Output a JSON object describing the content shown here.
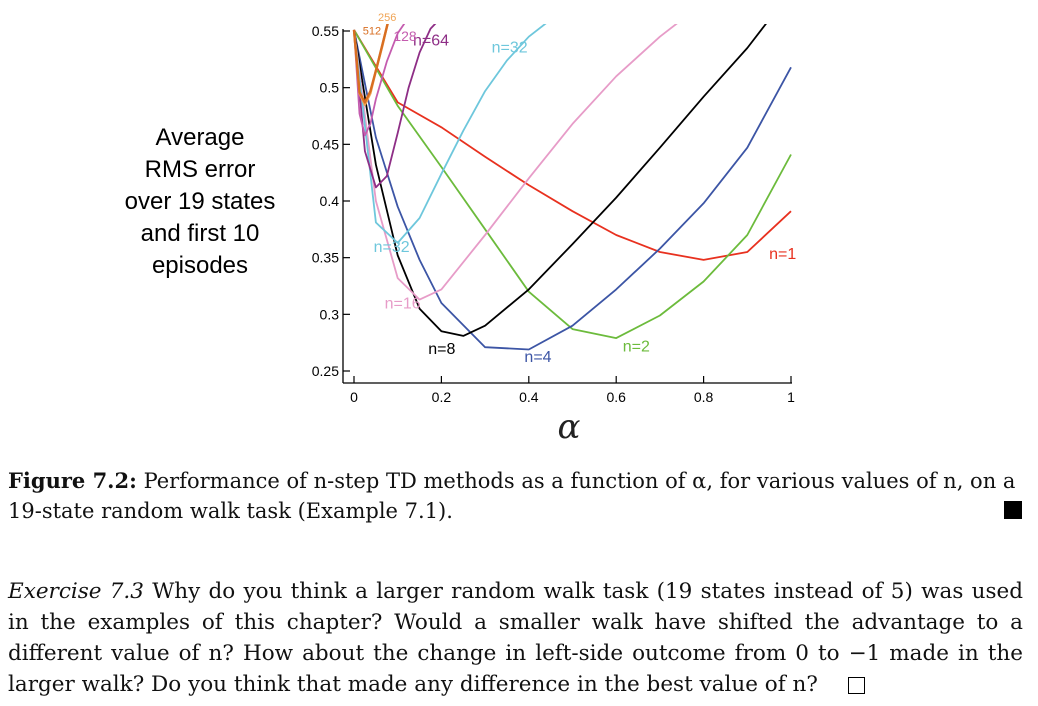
{
  "chart_data": {
    "type": "line",
    "ylabel_lines": [
      "Average",
      "RMS error",
      "over 19 states",
      "and first 10",
      "episodes"
    ],
    "xlabel": "α",
    "xlim": [
      0,
      1
    ],
    "ylim": [
      0.25,
      0.55
    ],
    "x_ticks": [
      {
        "value": 0,
        "label": "0"
      },
      {
        "value": 0.2,
        "label": "0.2"
      },
      {
        "value": 0.4,
        "label": "0.4"
      },
      {
        "value": 0.6,
        "label": "0.6"
      },
      {
        "value": 0.8,
        "label": "0.8"
      },
      {
        "value": 1,
        "label": "1"
      }
    ],
    "y_ticks": [
      {
        "value": 0.25,
        "label": "0.25"
      },
      {
        "value": 0.3,
        "label": "0.3"
      },
      {
        "value": 0.35,
        "label": "0.35"
      },
      {
        "value": 0.4,
        "label": "0.4"
      },
      {
        "value": 0.45,
        "label": "0.45"
      },
      {
        "value": 0.5,
        "label": "0.5"
      },
      {
        "value": 0.55,
        "label": "0.55"
      }
    ],
    "series": [
      {
        "name": "n=1",
        "color": "#e8311f",
        "x": [
          0,
          0.1,
          0.2,
          0.3,
          0.4,
          0.5,
          0.6,
          0.7,
          0.8,
          0.9,
          1.0
        ],
        "y": [
          0.551,
          0.487,
          0.465,
          0.439,
          0.414,
          0.391,
          0.37,
          0.355,
          0.348,
          0.355,
          0.391
        ]
      },
      {
        "name": "n=2",
        "color": "#6cbb3c",
        "x": [
          0,
          0.1,
          0.2,
          0.3,
          0.4,
          0.5,
          0.6,
          0.7,
          0.8,
          0.9,
          1.0
        ],
        "y": [
          0.551,
          0.484,
          0.43,
          0.375,
          0.32,
          0.287,
          0.279,
          0.299,
          0.329,
          0.37,
          0.441
        ]
      },
      {
        "name": "n=4",
        "color": "#3c55a5",
        "x": [
          0,
          0.05,
          0.1,
          0.15,
          0.2,
          0.3,
          0.4,
          0.5,
          0.6,
          0.7,
          0.8,
          0.9,
          1.0
        ],
        "y": [
          0.551,
          0.456,
          0.395,
          0.348,
          0.31,
          0.271,
          0.269,
          0.29,
          0.322,
          0.358,
          0.398,
          0.447,
          0.518
        ]
      },
      {
        "name": "n=8",
        "color": "#000000",
        "x": [
          0,
          0.05,
          0.1,
          0.15,
          0.2,
          0.25,
          0.3,
          0.4,
          0.5,
          0.6,
          0.7,
          0.8,
          0.9,
          0.95
        ],
        "y": [
          0.551,
          0.432,
          0.352,
          0.305,
          0.285,
          0.281,
          0.29,
          0.322,
          0.362,
          0.403,
          0.447,
          0.492,
          0.535,
          0.56
        ]
      },
      {
        "name": "n=16",
        "color": "#e79cc8",
        "x": [
          0,
          0.05,
          0.1,
          0.15,
          0.2,
          0.3,
          0.4,
          0.5,
          0.6,
          0.7,
          0.75
        ],
        "y": [
          0.551,
          0.4,
          0.332,
          0.313,
          0.322,
          0.37,
          0.42,
          0.468,
          0.51,
          0.545,
          0.56
        ]
      },
      {
        "name": "n=32",
        "color": "#6ec7dc",
        "x": [
          0,
          0.05,
          0.1,
          0.15,
          0.2,
          0.25,
          0.3,
          0.35,
          0.4,
          0.45
        ],
        "y": [
          0.551,
          0.381,
          0.363,
          0.385,
          0.424,
          0.462,
          0.497,
          0.524,
          0.545,
          0.56
        ]
      },
      {
        "name": "n=64",
        "color": "#8e2e86",
        "x": [
          0,
          0.025,
          0.05,
          0.075,
          0.1,
          0.125,
          0.15,
          0.175,
          0.2
        ],
        "y": [
          0.551,
          0.444,
          0.412,
          0.422,
          0.46,
          0.5,
          0.531,
          0.552,
          0.562
        ]
      },
      {
        "name": "128",
        "color": "#c45caf",
        "x": [
          0,
          0.0125,
          0.025,
          0.0375,
          0.05,
          0.075,
          0.1,
          0.125
        ],
        "y": [
          0.551,
          0.477,
          0.458,
          0.468,
          0.49,
          0.523,
          0.548,
          0.562
        ]
      },
      {
        "name": "256",
        "color": "#f0a455",
        "x": [
          0,
          0.0125,
          0.025,
          0.0375,
          0.05,
          0.065,
          0.08
        ],
        "y": [
          0.551,
          0.495,
          0.485,
          0.495,
          0.515,
          0.537,
          0.562
        ]
      },
      {
        "name": "512",
        "color": "#d86e21",
        "x": [
          0,
          0.0125,
          0.025,
          0.0375,
          0.05,
          0.065,
          0.08
        ],
        "y": [
          0.551,
          0.496,
          0.487,
          0.497,
          0.515,
          0.538,
          0.561
        ]
      }
    ],
    "labels": [
      {
        "text": "n=1",
        "series": "n=1",
        "x": 0.95,
        "y": 0.349
      },
      {
        "text": "n=2",
        "series": "n=2",
        "x": 0.615,
        "y": 0.267
      },
      {
        "text": "n=4",
        "series": "n=4",
        "x": 0.39,
        "y": 0.258
      },
      {
        "text": "n=8",
        "series": "n=8",
        "x": 0.17,
        "y": 0.265
      },
      {
        "text": "n=16",
        "series": "n=16",
        "x": 0.07,
        "y": 0.305
      },
      {
        "text": "n=32",
        "series": "n=32",
        "x": 0.045,
        "y": 0.355
      },
      {
        "text": "n=32",
        "series": "n=32",
        "x": 0.315,
        "y": 0.531
      },
      {
        "text": "n=64",
        "series": "n=64",
        "x": 0.135,
        "y": 0.537
      },
      {
        "text": "128",
        "series": "128",
        "x": 0.09,
        "y": 0.541
      },
      {
        "text": "256",
        "series": "256",
        "x": 0.055,
        "y": 0.559
      },
      {
        "text": "512",
        "series": "512",
        "x": 0.02,
        "y": 0.547
      }
    ]
  },
  "caption": {
    "label": "Figure 7.2:",
    "text": "Performance of n-step TD methods as a function of α, for various values of n, on a 19-state random walk task (Example 7.1)."
  },
  "exercise": {
    "label": "Exercise 7.3",
    "text": "Why do you think a larger random walk task (19 states instead of 5) was used in the examples of this chapter? Would a smaller walk have shifted the advantage to a different value of n? How about the change in left-side outcome from 0 to −1 made in the larger walk? Do you think that made any difference in the best value of n?"
  }
}
